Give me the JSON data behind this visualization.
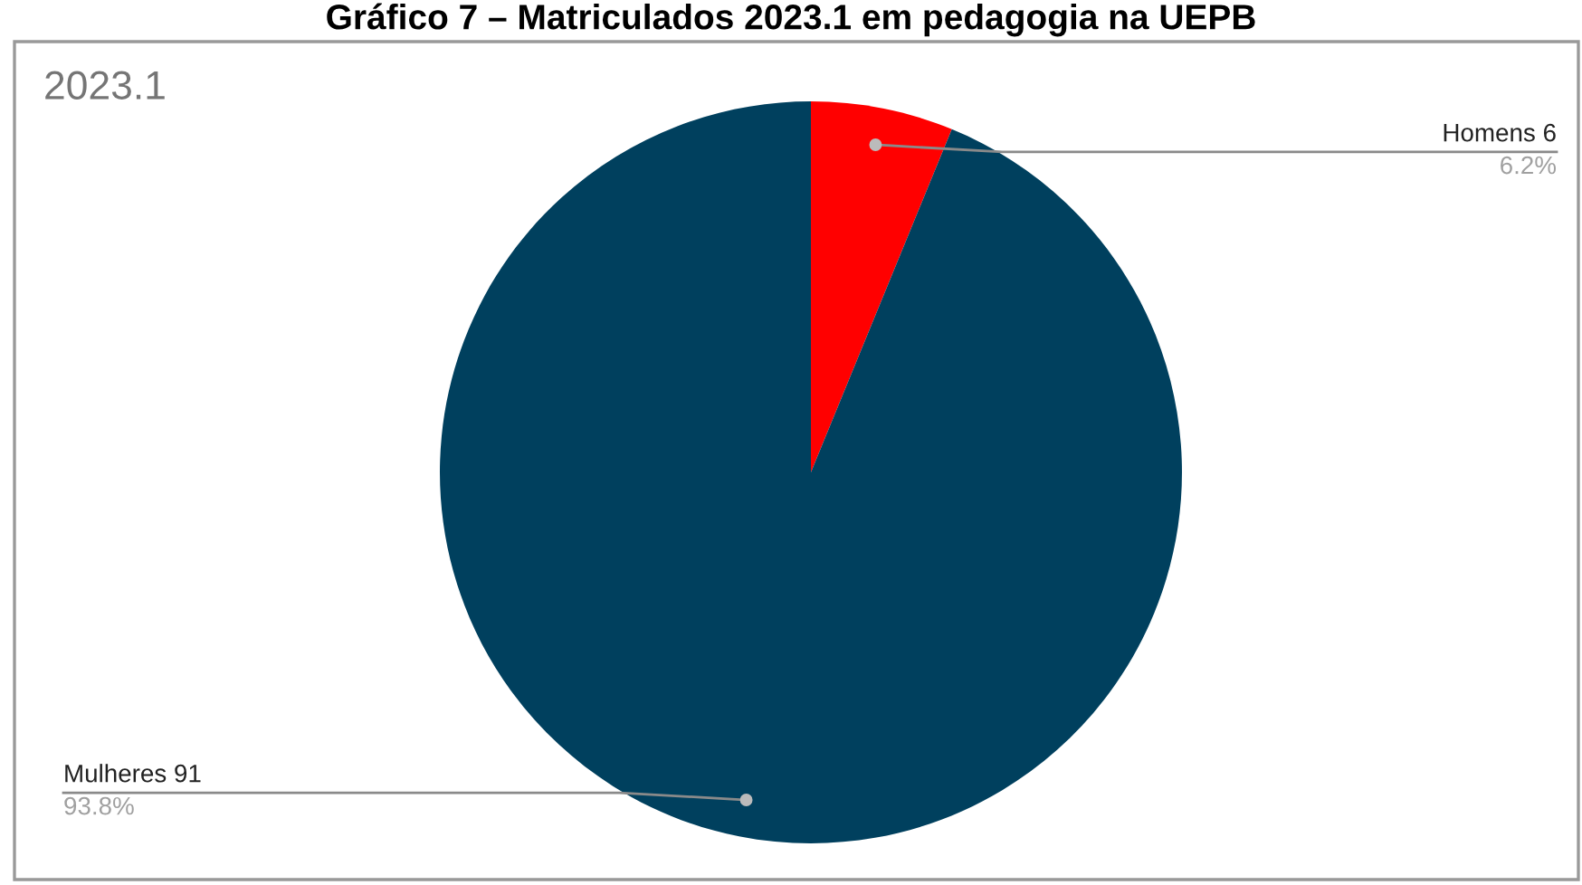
{
  "chart_data": {
    "type": "pie",
    "title": "Gráfico 7 – Matriculados 2023.1 em pedagogia na UEPB",
    "subtitle": "2023.1",
    "categories": [
      "Homens 6",
      "Mulheres 91"
    ],
    "values": [
      6.2,
      93.8
    ],
    "colors": [
      "#ff0000",
      "#00405e"
    ],
    "value_labels": [
      "6.2%",
      "93.8%"
    ],
    "legend": false
  }
}
